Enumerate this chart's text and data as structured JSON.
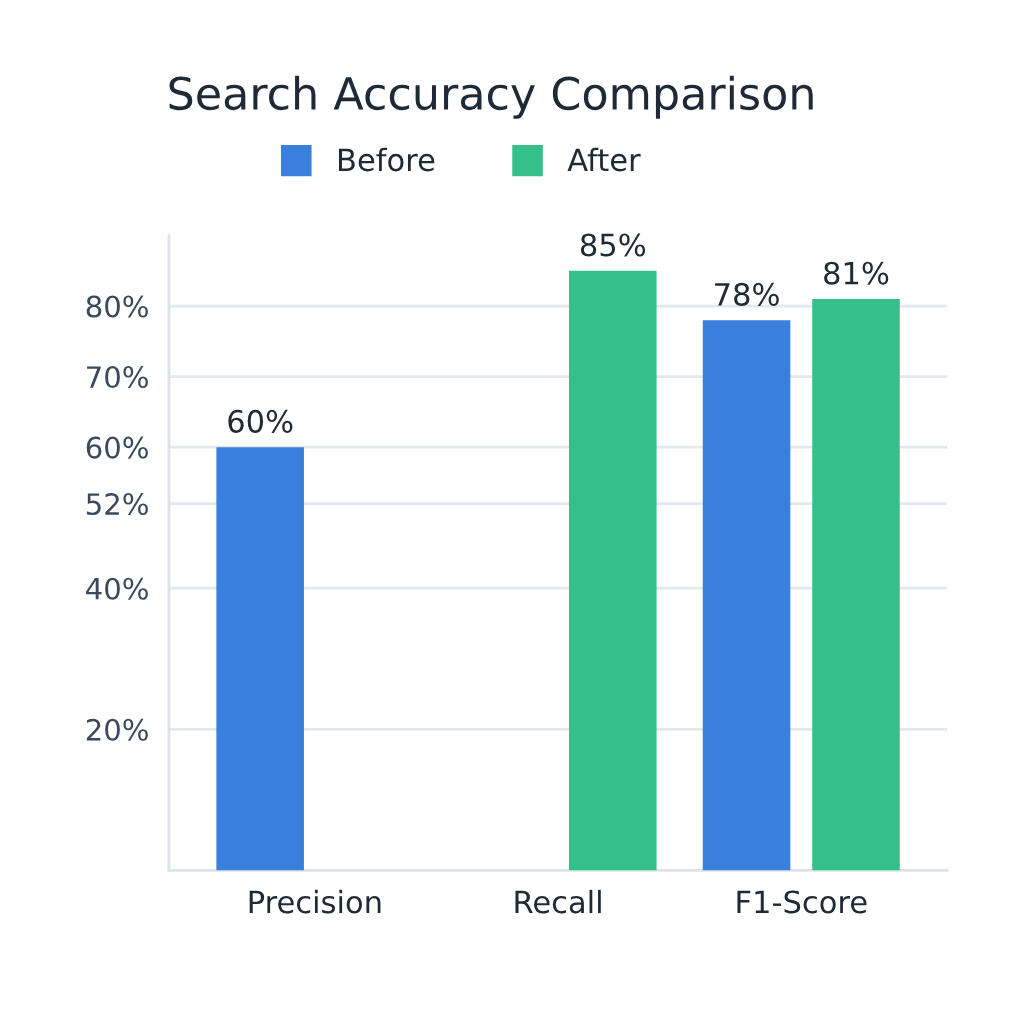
{
  "chart_data": {
    "type": "bar",
    "title": "Search Accuracy Comparison",
    "categories": [
      "Precision",
      "Recall",
      "F1-Score"
    ],
    "series": [
      {
        "name": "Before",
        "color": "#3a7fdc",
        "values": [
          60,
          null,
          78
        ],
        "value_labels": [
          "60%",
          null,
          "78%"
        ]
      },
      {
        "name": "After",
        "color": "#35c08a",
        "values": [
          null,
          85,
          81
        ],
        "value_labels": [
          null,
          "85%",
          "81%"
        ]
      }
    ],
    "ylim": [
      0,
      90
    ],
    "yticks": [
      {
        "value": 20,
        "label": "20%"
      },
      {
        "value": 40,
        "label": "40%"
      },
      {
        "value": 52,
        "label": "52%"
      },
      {
        "value": 60,
        "label": "60%"
      },
      {
        "value": 70,
        "label": "70%"
      },
      {
        "value": 80,
        "label": "80%"
      }
    ],
    "grid": "y",
    "legend": "top"
  }
}
